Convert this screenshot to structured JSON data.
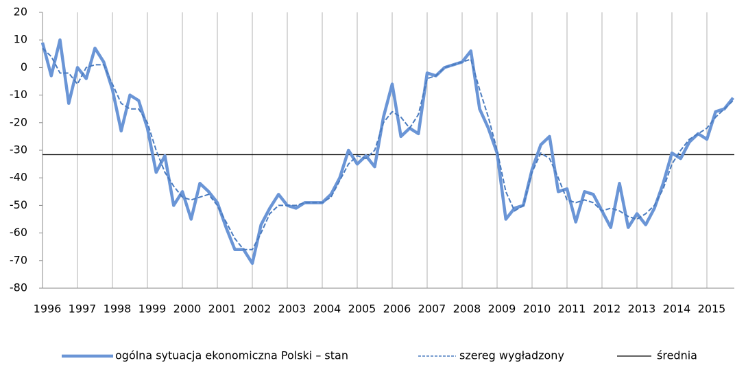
{
  "chart_data": {
    "type": "line",
    "categories": [
      "1996",
      null,
      null,
      null,
      "1997",
      null,
      null,
      null,
      "1998",
      null,
      null,
      null,
      "1999",
      null,
      null,
      null,
      "2000",
      null,
      null,
      null,
      "2001",
      null,
      null,
      null,
      "2002",
      null,
      null,
      null,
      "2003",
      null,
      null,
      null,
      "2004",
      null,
      null,
      null,
      "2005",
      null,
      null,
      null,
      "2006",
      null,
      null,
      null,
      "2007",
      null,
      null,
      null,
      "2008",
      null,
      null,
      null,
      "2009",
      null,
      null,
      null,
      "2010",
      null,
      null,
      null,
      "2011",
      null,
      null,
      null,
      "2012",
      null,
      null,
      null,
      "2013",
      null,
      null,
      null,
      "2014",
      null,
      null,
      null,
      "2015",
      null,
      null,
      null
    ],
    "series": [
      {
        "name": "ogólna sytuacja ekonomiczna Polski – stan",
        "color": "#6a95d6",
        "style": "solid",
        "values": [
          9,
          -3,
          10,
          -13,
          0,
          -4,
          7,
          2,
          -8,
          -23,
          -10,
          -12,
          -22,
          -38,
          -32,
          -50,
          -45,
          -55,
          -42,
          -45,
          -49,
          -58,
          -66,
          -66,
          -71,
          -57,
          -51,
          -46,
          -50,
          -51,
          -49,
          -49,
          -49,
          -46,
          -40,
          -30,
          -35,
          -32,
          -36,
          -18,
          -6,
          -25,
          -22,
          -24,
          -2,
          -3,
          0,
          1,
          2,
          6,
          -15,
          -22,
          -31,
          -55,
          -51,
          -50,
          -37,
          -28,
          -25,
          -45,
          -44,
          -56,
          -45,
          -46,
          -52,
          -58,
          -42,
          -58,
          -53,
          -57,
          -51,
          -42,
          -31,
          -33,
          -27,
          -24,
          -26,
          -16,
          -15,
          -11
        ]
      },
      {
        "name": "szereg wygładzony",
        "color": "#4a7bbf",
        "style": "dashed",
        "values": [
          7,
          4,
          -2,
          -2,
          -6,
          0,
          1,
          1,
          -6,
          -13,
          -15,
          -15,
          -20,
          -30,
          -38,
          -43,
          -47,
          -48,
          -47,
          -46,
          -50,
          -56,
          -62,
          -66,
          -66,
          -60,
          -53,
          -50,
          -50,
          -50,
          -49,
          -49,
          -49,
          -47,
          -41,
          -35,
          -32,
          -33,
          -30,
          -20,
          -16,
          -18,
          -22,
          -17,
          -4,
          -3,
          0,
          1,
          2,
          3,
          -8,
          -18,
          -30,
          -45,
          -52,
          -50,
          -38,
          -31,
          -33,
          -40,
          -48,
          -49,
          -48,
          -49,
          -52,
          -51,
          -52,
          -54,
          -55,
          -53,
          -50,
          -44,
          -35,
          -30,
          -26,
          -24,
          -22,
          -18,
          -15,
          -12
        ]
      }
    ],
    "hlines": [
      {
        "name": "średnia",
        "value": -31.6,
        "color": "#000000"
      }
    ],
    "ylim": [
      -80,
      20
    ],
    "yticks": [
      -80,
      -70,
      -60,
      -50,
      -40,
      -30,
      -20,
      -10,
      0,
      10,
      20
    ],
    "grid": "vertical",
    "legend": "bottom"
  }
}
